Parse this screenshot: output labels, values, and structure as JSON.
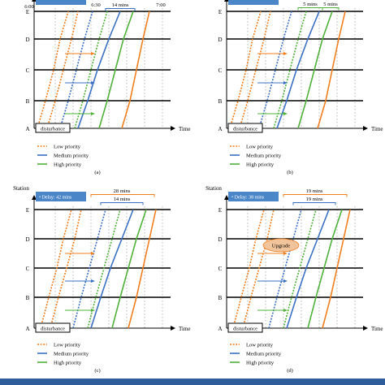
{
  "axes": {
    "station_axis_label": "Station",
    "time_axis_label": "Time",
    "stations": [
      "E",
      "D",
      "C",
      "B",
      "A"
    ]
  },
  "legend": {
    "items": [
      {
        "label": "Low priority",
        "color": "#f07d1e"
      },
      {
        "label": "Medium priority",
        "color": "#3a6fc4"
      },
      {
        "label": "High priority",
        "color": "#4fb13a"
      }
    ]
  },
  "disturbance_label": "disturbance",
  "upgrade_label": "Upgrade",
  "colors": {
    "low": "#f07d1e",
    "medium": "#3a6fc4",
    "high": "#4fb13a",
    "badge": "#4a86c8",
    "annotation": "#f07d1e",
    "upgrade_fill": "#f2c49b",
    "footer_bar": "#2f5c9a"
  },
  "panels": [
    {
      "id": "a",
      "caption": "(a)",
      "badge": "",
      "time_labels": [
        "6:00",
        "6:30",
        "7:00"
      ],
      "annotations": [
        "14 mins"
      ],
      "show_station_label": false,
      "show_upgrade": false
    },
    {
      "id": "b",
      "caption": "(b)",
      "badge": "",
      "time_labels": [],
      "annotations": [
        "5 mins",
        "5 mins"
      ],
      "show_station_label": false,
      "show_upgrade": false
    },
    {
      "id": "c",
      "caption": "(c)",
      "badge": "• Delay: 42 mins",
      "time_labels": [],
      "annotations": [
        "28 mins",
        "14 mins"
      ],
      "show_station_label": true,
      "show_upgrade": false
    },
    {
      "id": "d",
      "caption": "(d)",
      "badge": "• Delay: 38 mins",
      "time_labels": [],
      "annotations": [
        "19 mins",
        "19 mins"
      ],
      "show_station_label": true,
      "show_upgrade": true
    }
  ]
}
